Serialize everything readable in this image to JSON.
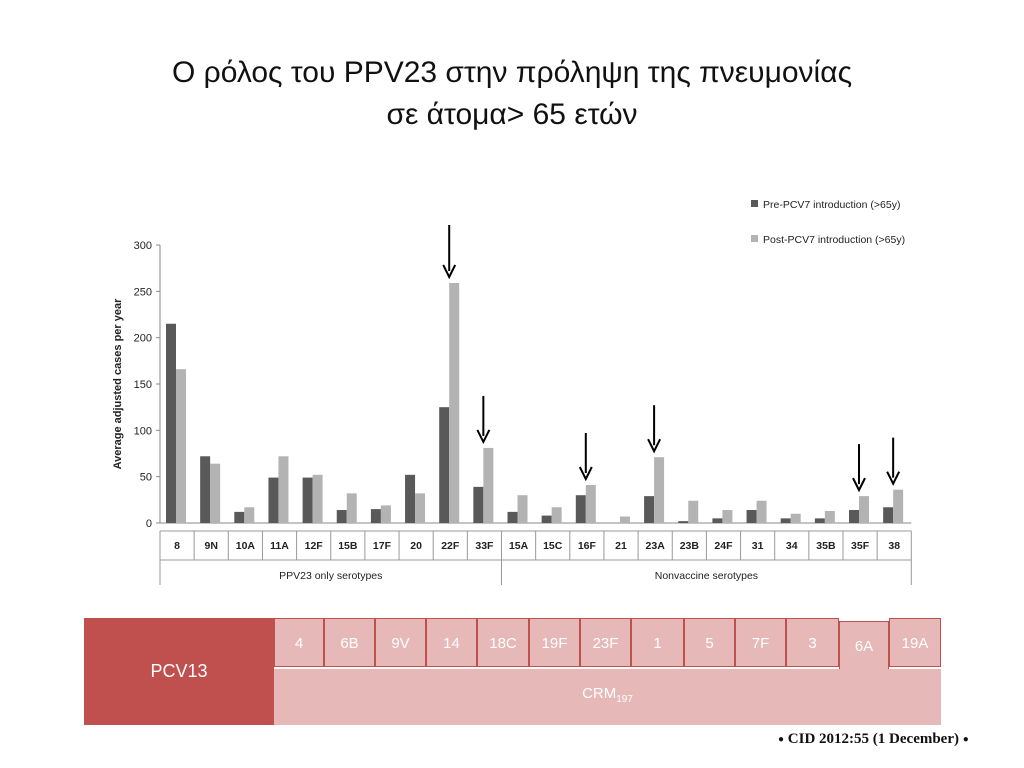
{
  "slide": {
    "title_line1": "Ο ρόλος του PPV23 στην πρόληψη της πνευμονίας",
    "title_line2": "σε άτομα> 65 ετών"
  },
  "chart_data": {
    "type": "bar",
    "ylabel": "Average adjusted cases per year",
    "ylim": [
      0,
      300
    ],
    "yticks": [
      0,
      50,
      100,
      150,
      200,
      250,
      300
    ],
    "categories": [
      "8",
      "9N",
      "10A",
      "11A",
      "12F",
      "15B",
      "17F",
      "20",
      "22F",
      "33F",
      "15A",
      "15C",
      "16F",
      "21",
      "23A",
      "23B",
      "24F",
      "31",
      "34",
      "35B",
      "35F",
      "38"
    ],
    "series": [
      {
        "name": "Pre-PCV7 introduction (>65y)",
        "color": "#595959",
        "values": [
          215,
          72,
          12,
          49,
          49,
          14,
          15,
          52,
          125,
          39,
          12,
          8,
          30,
          0,
          29,
          2,
          5,
          14,
          5,
          5,
          14,
          17
        ]
      },
      {
        "name": "Post-PCV7 introduction (>65y)",
        "color": "#b3b3b3",
        "values": [
          166,
          64,
          17,
          72,
          52,
          32,
          19,
          32,
          259,
          81,
          30,
          17,
          41,
          7,
          71,
          24,
          14,
          24,
          10,
          13,
          29,
          36
        ]
      }
    ],
    "groups": [
      {
        "label": "PPV23 only serotypes",
        "from": 0,
        "to": 9
      },
      {
        "label": "Nonvaccine serotypes",
        "from": 10,
        "to": 21
      }
    ],
    "arrows_at": [
      "22F",
      "33F",
      "16F",
      "23A",
      "35F",
      "38"
    ],
    "legend_position": "top-right"
  },
  "pcv_table": {
    "label": "PCV13",
    "carrier_main": "CRM",
    "carrier_sub": "197",
    "serotypes": [
      "4",
      "6B",
      "9V",
      "14",
      "18C",
      "19F",
      "23F",
      "1",
      "5",
      "7F",
      "3",
      "6A",
      "19A"
    ]
  },
  "citation": {
    "text": "CID  2012:55  (1 December)"
  }
}
